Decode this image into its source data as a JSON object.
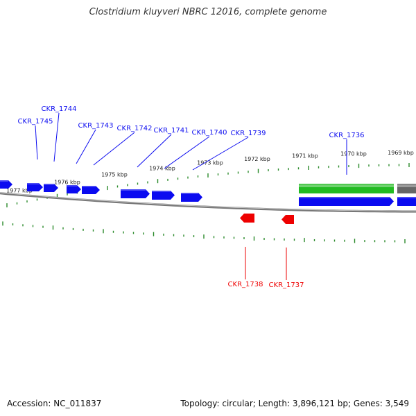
{
  "title": "Clostridium kluyveri NBRC 12016, complete genome",
  "footer": {
    "accession": "Accession: NC_011837",
    "summary": "Topology: circular; Length: 3,896,121 bp; Genes: 3,549"
  },
  "colors": {
    "forward_gene": "#0b0bf0",
    "reverse_gene": "#ee0000",
    "rna_gene": "#22bb22",
    "other_gene": "#666666",
    "tick": "#2a8a2a",
    "genome_line": "#777777"
  },
  "kbp_labels": [
    "1977 kbp",
    "1976 kbp",
    "1975 kbp",
    "1974 kbp",
    "1973 kbp",
    "1972 kbp",
    "1971 kbp",
    "1970 kbp",
    "1969 kbp"
  ],
  "forward_labels": [
    "CKR_1745",
    "CKR_1744",
    "CKR_1743",
    "CKR_1742",
    "CKR_1741",
    "CKR_1740",
    "CKR_1739",
    "CKR_1736"
  ],
  "reverse_labels": [
    "CKR_1738",
    "CKR_1737"
  ]
}
